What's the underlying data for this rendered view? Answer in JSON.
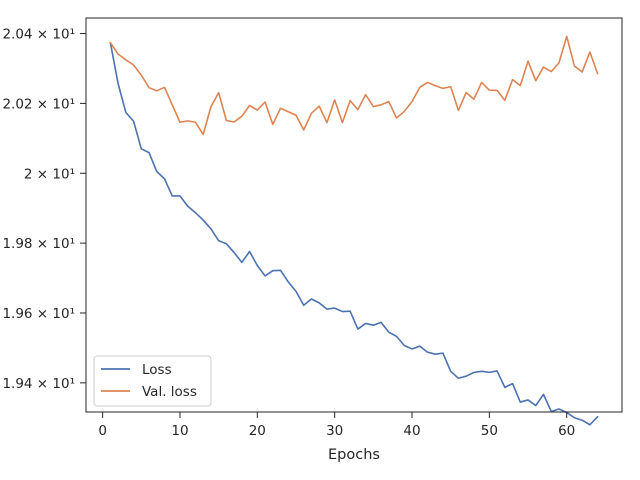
{
  "chart_data": {
    "type": "line",
    "title": "",
    "xlabel": "Epochs",
    "ylabel": "",
    "xlim": [
      -2.15,
      67.15
    ],
    "ylim": [
      19.3165,
      20.4445
    ],
    "grid": false,
    "legend_position": "lower-left",
    "x_ticks": [
      {
        "value": 0,
        "label": "0"
      },
      {
        "value": 10,
        "label": "10"
      },
      {
        "value": 20,
        "label": "20"
      },
      {
        "value": 30,
        "label": "30"
      },
      {
        "value": 40,
        "label": "40"
      },
      {
        "value": 50,
        "label": "50"
      },
      {
        "value": 60,
        "label": "60"
      }
    ],
    "y_ticks": [
      {
        "value": 19.4,
        "label": "1.94 × 10¹"
      },
      {
        "value": 19.6,
        "label": "1.96 × 10¹"
      },
      {
        "value": 19.8,
        "label": "1.98 × 10¹"
      },
      {
        "value": 20.0,
        "label": "2 × 10¹"
      },
      {
        "value": 20.2,
        "label": "2.02 × 10¹"
      },
      {
        "value": 20.4,
        "label": "2.04 × 10¹"
      }
    ],
    "x": [
      1,
      2,
      3,
      4,
      5,
      6,
      7,
      8,
      9,
      10,
      11,
      12,
      13,
      14,
      15,
      16,
      17,
      18,
      19,
      20,
      21,
      22,
      23,
      24,
      25,
      26,
      27,
      28,
      29,
      30,
      31,
      32,
      33,
      34,
      35,
      36,
      37,
      38,
      39,
      40,
      41,
      42,
      43,
      44,
      45,
      46,
      47,
      48,
      49,
      50,
      51,
      52,
      53,
      54,
      55,
      56,
      57,
      58,
      59,
      60,
      61,
      62,
      63,
      64
    ],
    "series": [
      {
        "name": "Loss",
        "color": "#4c72b0",
        "values": [
          20.374,
          20.257,
          20.174,
          20.149,
          20.07,
          20.059,
          20.005,
          19.984,
          19.935,
          19.935,
          19.906,
          19.887,
          19.866,
          19.841,
          19.807,
          19.798,
          19.773,
          19.745,
          19.776,
          19.736,
          19.706,
          19.721,
          19.722,
          19.689,
          19.662,
          19.622,
          19.64,
          19.629,
          19.611,
          19.614,
          19.604,
          19.605,
          19.554,
          19.57,
          19.565,
          19.573,
          19.545,
          19.533,
          19.507,
          19.497,
          19.505,
          19.488,
          19.482,
          19.485,
          19.433,
          19.413,
          19.419,
          19.43,
          19.433,
          19.43,
          19.434,
          19.387,
          19.398,
          19.345,
          19.351,
          19.335,
          19.367,
          19.318,
          19.325,
          19.315,
          19.3,
          19.293,
          19.28,
          19.303
        ]
      },
      {
        "name": "Val. loss",
        "color": "#dd8452",
        "values": [
          20.374,
          20.341,
          20.325,
          20.31,
          20.281,
          20.245,
          20.236,
          20.246,
          20.196,
          20.146,
          20.15,
          20.146,
          20.111,
          20.19,
          20.231,
          20.151,
          20.147,
          20.163,
          20.194,
          20.181,
          20.204,
          20.14,
          20.186,
          20.176,
          20.166,
          20.124,
          20.172,
          20.192,
          20.145,
          20.21,
          20.145,
          20.208,
          20.182,
          20.225,
          20.191,
          20.196,
          20.205,
          20.158,
          20.177,
          20.205,
          20.246,
          20.26,
          20.251,
          20.243,
          20.248,
          20.18,
          20.231,
          20.212,
          20.26,
          20.238,
          20.237,
          20.209,
          20.268,
          20.251,
          20.321,
          20.265,
          20.304,
          20.291,
          20.316,
          20.392,
          20.307,
          20.29,
          20.347,
          20.285
        ]
      }
    ]
  }
}
